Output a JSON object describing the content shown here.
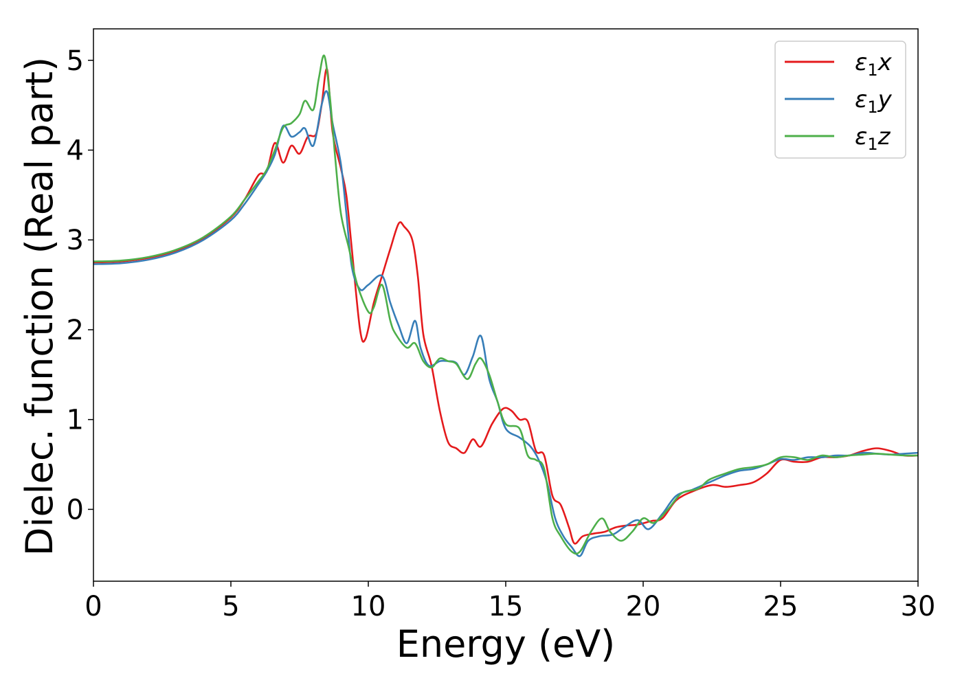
{
  "chart_data": {
    "type": "line",
    "xlabel": "Energy (eV)",
    "ylabel": "Dielec. function (Real part)",
    "xlim": [
      0,
      30
    ],
    "ylim": [
      -0.8,
      5.35
    ],
    "xticks": [
      "0",
      "5",
      "10",
      "15",
      "20",
      "25",
      "30"
    ],
    "yticks": [
      "0",
      "1",
      "2",
      "3",
      "4",
      "5"
    ],
    "grid": false,
    "legend_position": "top-right",
    "series": [
      {
        "name": "ε₁x",
        "legend_base": "ε",
        "legend_sub": "1",
        "legend_suffix": "x",
        "color": "#e41a1c",
        "points": [
          [
            0,
            2.75
          ],
          [
            1,
            2.76
          ],
          [
            2,
            2.8
          ],
          [
            3,
            2.88
          ],
          [
            4,
            3.02
          ],
          [
            5,
            3.25
          ],
          [
            5.5,
            3.45
          ],
          [
            6,
            3.72
          ],
          [
            6.3,
            3.76
          ],
          [
            6.6,
            4.08
          ],
          [
            6.9,
            3.86
          ],
          [
            7.2,
            4.05
          ],
          [
            7.5,
            3.96
          ],
          [
            7.8,
            4.15
          ],
          [
            8.1,
            4.18
          ],
          [
            8.3,
            4.5
          ],
          [
            8.5,
            4.9
          ],
          [
            8.7,
            4.2
          ],
          [
            9,
            3.8
          ],
          [
            9.2,
            3.5
          ],
          [
            9.4,
            2.9
          ],
          [
            9.7,
            2.0
          ],
          [
            9.9,
            1.9
          ],
          [
            10.2,
            2.3
          ],
          [
            10.5,
            2.6
          ],
          [
            10.8,
            2.9
          ],
          [
            11.1,
            3.18
          ],
          [
            11.3,
            3.15
          ],
          [
            11.6,
            3.0
          ],
          [
            11.8,
            2.6
          ],
          [
            12,
            1.95
          ],
          [
            12.3,
            1.6
          ],
          [
            12.6,
            1.1
          ],
          [
            12.9,
            0.75
          ],
          [
            13.2,
            0.68
          ],
          [
            13.5,
            0.63
          ],
          [
            13.8,
            0.78
          ],
          [
            14.1,
            0.7
          ],
          [
            14.5,
            0.95
          ],
          [
            14.9,
            1.12
          ],
          [
            15.2,
            1.1
          ],
          [
            15.5,
            1.0
          ],
          [
            15.8,
            0.98
          ],
          [
            16.1,
            0.65
          ],
          [
            16.4,
            0.6
          ],
          [
            16.7,
            0.15
          ],
          [
            17,
            0.05
          ],
          [
            17.3,
            -0.2
          ],
          [
            17.5,
            -0.38
          ],
          [
            17.8,
            -0.3
          ],
          [
            18.2,
            -0.27
          ],
          [
            18.6,
            -0.25
          ],
          [
            19,
            -0.2
          ],
          [
            19.4,
            -0.18
          ],
          [
            19.8,
            -0.17
          ],
          [
            20.3,
            -0.13
          ],
          [
            20.7,
            -0.1
          ],
          [
            21.2,
            0.1
          ],
          [
            21.8,
            0.2
          ],
          [
            22.5,
            0.27
          ],
          [
            23,
            0.25
          ],
          [
            23.5,
            0.27
          ],
          [
            24,
            0.3
          ],
          [
            24.5,
            0.4
          ],
          [
            25,
            0.55
          ],
          [
            25.5,
            0.53
          ],
          [
            26,
            0.53
          ],
          [
            26.5,
            0.58
          ],
          [
            27,
            0.58
          ],
          [
            27.5,
            0.6
          ],
          [
            28,
            0.65
          ],
          [
            28.5,
            0.68
          ],
          [
            29,
            0.65
          ],
          [
            29.5,
            0.6
          ],
          [
            30,
            0.6
          ]
        ]
      },
      {
        "name": "ε₁y",
        "legend_base": "ε",
        "legend_sub": "1",
        "legend_suffix": "y",
        "color": "#377eb8",
        "points": [
          [
            0,
            2.73
          ],
          [
            1,
            2.74
          ],
          [
            2,
            2.78
          ],
          [
            3,
            2.86
          ],
          [
            4,
            3.0
          ],
          [
            5,
            3.22
          ],
          [
            5.5,
            3.4
          ],
          [
            6,
            3.62
          ],
          [
            6.3,
            3.76
          ],
          [
            6.6,
            3.95
          ],
          [
            6.9,
            4.27
          ],
          [
            7.2,
            4.15
          ],
          [
            7.5,
            4.2
          ],
          [
            7.7,
            4.24
          ],
          [
            8.0,
            4.05
          ],
          [
            8.3,
            4.5
          ],
          [
            8.5,
            4.65
          ],
          [
            8.7,
            4.3
          ],
          [
            9,
            3.85
          ],
          [
            9.2,
            3.3
          ],
          [
            9.4,
            2.7
          ],
          [
            9.7,
            2.45
          ],
          [
            10,
            2.5
          ],
          [
            10.5,
            2.6
          ],
          [
            10.8,
            2.3
          ],
          [
            11.1,
            2.05
          ],
          [
            11.4,
            1.85
          ],
          [
            11.7,
            2.1
          ],
          [
            11.9,
            1.8
          ],
          [
            12.2,
            1.6
          ],
          [
            12.6,
            1.65
          ],
          [
            12.9,
            1.65
          ],
          [
            13.2,
            1.63
          ],
          [
            13.5,
            1.5
          ],
          [
            13.8,
            1.7
          ],
          [
            14.1,
            1.93
          ],
          [
            14.4,
            1.45
          ],
          [
            14.7,
            1.2
          ],
          [
            15,
            0.9
          ],
          [
            15.5,
            0.8
          ],
          [
            15.9,
            0.7
          ],
          [
            16.2,
            0.55
          ],
          [
            16.5,
            0.3
          ],
          [
            16.8,
            -0.1
          ],
          [
            17.1,
            -0.3
          ],
          [
            17.4,
            -0.42
          ],
          [
            17.7,
            -0.52
          ],
          [
            18,
            -0.35
          ],
          [
            18.4,
            -0.3
          ],
          [
            18.9,
            -0.28
          ],
          [
            19.3,
            -0.2
          ],
          [
            19.8,
            -0.12
          ],
          [
            20.2,
            -0.22
          ],
          [
            20.7,
            -0.05
          ],
          [
            21.2,
            0.15
          ],
          [
            21.8,
            0.22
          ],
          [
            22.4,
            0.3
          ],
          [
            23,
            0.38
          ],
          [
            23.5,
            0.43
          ],
          [
            24,
            0.45
          ],
          [
            24.5,
            0.5
          ],
          [
            25,
            0.56
          ],
          [
            25.5,
            0.55
          ],
          [
            26,
            0.58
          ],
          [
            26.5,
            0.58
          ],
          [
            27,
            0.6
          ],
          [
            27.5,
            0.6
          ],
          [
            28,
            0.63
          ],
          [
            28.5,
            0.62
          ],
          [
            29,
            0.61
          ],
          [
            29.5,
            0.62
          ],
          [
            30,
            0.63
          ]
        ]
      },
      {
        "name": "ε₁z",
        "legend_base": "ε",
        "legend_sub": "1",
        "legend_suffix": "z",
        "color": "#4daf4a",
        "points": [
          [
            0,
            2.76
          ],
          [
            1,
            2.77
          ],
          [
            2,
            2.81
          ],
          [
            3,
            2.89
          ],
          [
            4,
            3.03
          ],
          [
            5,
            3.26
          ],
          [
            5.5,
            3.45
          ],
          [
            6,
            3.65
          ],
          [
            6.3,
            3.78
          ],
          [
            6.6,
            4.0
          ],
          [
            6.9,
            4.25
          ],
          [
            7.2,
            4.3
          ],
          [
            7.5,
            4.4
          ],
          [
            7.7,
            4.55
          ],
          [
            8.0,
            4.45
          ],
          [
            8.2,
            4.8
          ],
          [
            8.4,
            5.05
          ],
          [
            8.6,
            4.6
          ],
          [
            8.8,
            3.9
          ],
          [
            9,
            3.3
          ],
          [
            9.3,
            2.9
          ],
          [
            9.6,
            2.5
          ],
          [
            10,
            2.2
          ],
          [
            10.2,
            2.25
          ],
          [
            10.5,
            2.5
          ],
          [
            10.8,
            2.1
          ],
          [
            11,
            1.95
          ],
          [
            11.4,
            1.8
          ],
          [
            11.7,
            1.85
          ],
          [
            12,
            1.65
          ],
          [
            12.3,
            1.58
          ],
          [
            12.6,
            1.68
          ],
          [
            12.9,
            1.65
          ],
          [
            13.2,
            1.62
          ],
          [
            13.6,
            1.45
          ],
          [
            13.9,
            1.62
          ],
          [
            14.1,
            1.68
          ],
          [
            14.4,
            1.5
          ],
          [
            14.7,
            1.2
          ],
          [
            15,
            0.95
          ],
          [
            15.5,
            0.9
          ],
          [
            15.8,
            0.6
          ],
          [
            16.1,
            0.55
          ],
          [
            16.4,
            0.45
          ],
          [
            16.7,
            -0.1
          ],
          [
            17,
            -0.3
          ],
          [
            17.4,
            -0.47
          ],
          [
            17.7,
            -0.47
          ],
          [
            18.1,
            -0.25
          ],
          [
            18.5,
            -0.1
          ],
          [
            18.8,
            -0.25
          ],
          [
            19.2,
            -0.35
          ],
          [
            19.6,
            -0.25
          ],
          [
            20,
            -0.1
          ],
          [
            20.4,
            -0.15
          ],
          [
            20.9,
            0.0
          ],
          [
            21.4,
            0.18
          ],
          [
            22,
            0.23
          ],
          [
            22.4,
            0.33
          ],
          [
            23,
            0.4
          ],
          [
            23.5,
            0.45
          ],
          [
            24,
            0.47
          ],
          [
            24.5,
            0.5
          ],
          [
            25,
            0.58
          ],
          [
            25.5,
            0.58
          ],
          [
            26,
            0.55
          ],
          [
            26.5,
            0.6
          ],
          [
            27,
            0.58
          ],
          [
            27.5,
            0.6
          ],
          [
            28,
            0.61
          ],
          [
            28.5,
            0.62
          ],
          [
            29,
            0.61
          ],
          [
            29.5,
            0.6
          ],
          [
            30,
            0.6
          ]
        ]
      }
    ]
  }
}
